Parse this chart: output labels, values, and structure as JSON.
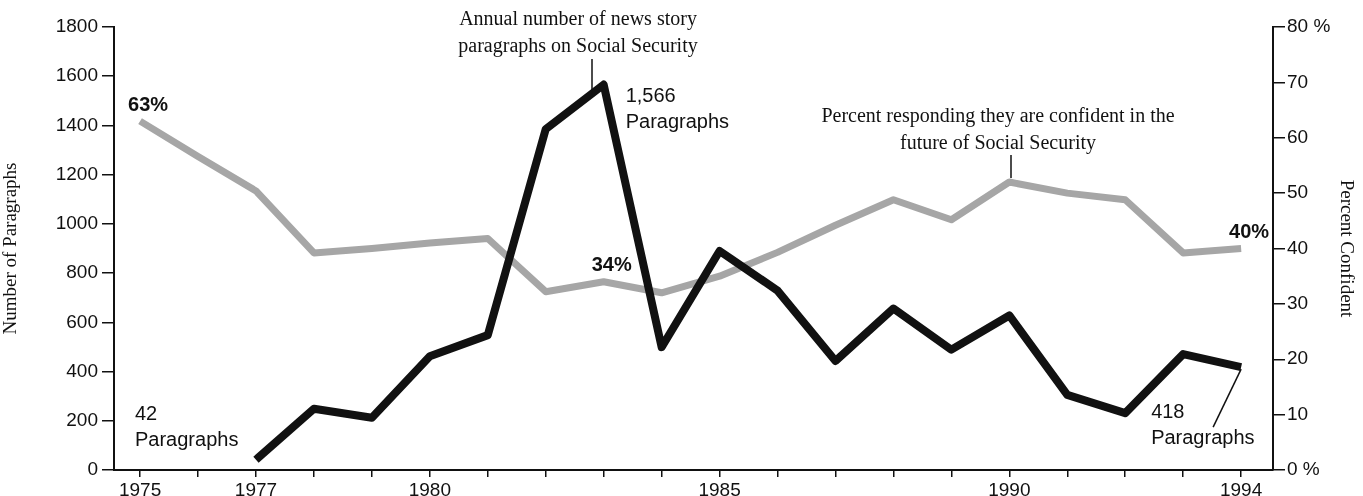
{
  "chart_data": {
    "type": "line",
    "ylabel": "Number of Paragraphs",
    "y2label": "Percent Confident",
    "xlim": [
      1974.55,
      1994.55
    ],
    "xticks": [
      1975,
      {
        "value": 1976,
        "label": null
      },
      1977,
      {
        "value": 1978,
        "label": null
      },
      {
        "value": 1979,
        "label": null
      },
      1980,
      {
        "value": 1981,
        "label": null
      },
      {
        "value": 1982,
        "label": null
      },
      {
        "value": 1983,
        "label": null
      },
      {
        "value": 1984,
        "label": null
      },
      1985,
      {
        "value": 1986,
        "label": null
      },
      {
        "value": 1987,
        "label": null
      },
      {
        "value": 1988,
        "label": null
      },
      {
        "value": 1989,
        "label": null
      },
      1990,
      {
        "value": 1991,
        "label": null
      },
      {
        "value": 1992,
        "label": null
      },
      {
        "value": 1993,
        "label": null
      },
      1994
    ],
    "ylim": [
      0,
      1800
    ],
    "yticks": [
      0,
      200,
      400,
      600,
      800,
      1000,
      1200,
      1400,
      1600,
      1800
    ],
    "y2lim": [
      0,
      80
    ],
    "y2ticks": [
      {
        "value": 0,
        "label": "0 %"
      },
      10,
      20,
      30,
      40,
      50,
      60,
      70,
      {
        "value": 80,
        "label": "80 %"
      }
    ],
    "series": [
      {
        "name": "Annual number of news story paragraphs on Social Security",
        "color": "#111111",
        "x": [
          1977,
          1978,
          1979,
          1980,
          1981,
          1982,
          1983,
          1984,
          1985,
          1986,
          1987,
          1988,
          1989,
          1990,
          1991,
          1992,
          1993,
          1994
        ],
        "values": [
          42,
          249,
          212,
          462,
          548,
          1385,
          1566,
          499,
          890,
          729,
          443,
          656,
          489,
          628,
          305,
          231,
          471,
          418
        ]
      },
      {
        "name": "Percent responding they are confident in the future of Social Security",
        "color": "#a6a6a6",
        "axis": "y2",
        "x": [
          1975,
          1976,
          1977,
          1978,
          1979,
          1980,
          1981,
          1982,
          1983,
          1984,
          1985,
          1986,
          1987,
          1988,
          1989,
          1990,
          1991,
          1992,
          1993,
          1994
        ],
        "values": [
          63,
          56.6,
          50.4,
          39.2,
          40,
          41,
          41.8,
          32.2,
          34,
          32,
          35,
          39.3,
          44.2,
          48.8,
          45.2,
          52,
          50,
          48.8,
          39.2,
          40
        ],
        "value_labels": [
          "63%",
          null,
          null,
          null,
          null,
          null,
          null,
          null,
          "34%",
          null,
          null,
          null,
          null,
          null,
          null,
          null,
          null,
          null,
          null,
          "40%"
        ]
      }
    ],
    "annotations": [
      {
        "text": "1,566 Paragraphs",
        "x": 1983,
        "y": 1566
      },
      {
        "text": "42 Paragraphs",
        "x": 1977,
        "y": 42
      },
      {
        "text": "418 Paragraphs",
        "x": 1994,
        "y": 418
      }
    ],
    "grid": false,
    "legend": false,
    "marker": "none",
    "line_style": "solid"
  }
}
